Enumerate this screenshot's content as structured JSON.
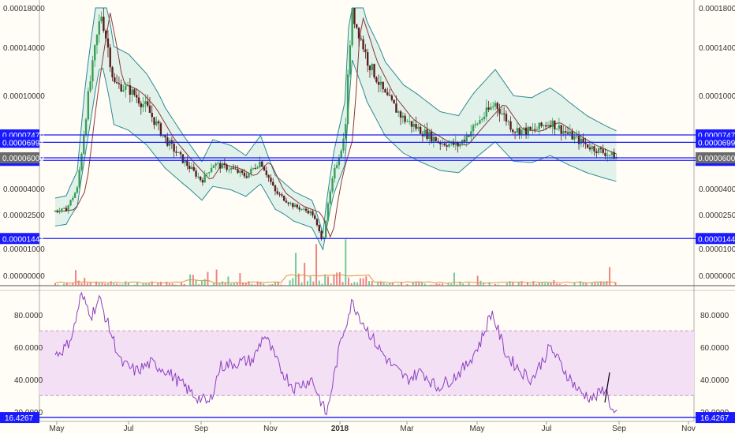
{
  "chart_data": [
    {
      "type": "candlestick",
      "title": "",
      "x_ticks": [
        "May",
        "Jul",
        "Sep",
        "Nov",
        "2018",
        "Mar",
        "May",
        "Jul",
        "Sep",
        "Nov"
      ],
      "y_ticks": [
        "0.00018000",
        "0.00014000",
        "0.00010000",
        "0.00006000",
        "0.00004000",
        "0.00002500",
        "0.00001000",
        "0.00000000"
      ],
      "scale": "log",
      "horizontal_levels": [
        "0.00007470",
        "0.00006994",
        "0.00006000",
        "0.00005834",
        "0.00001444"
      ],
      "current_price": "0.00006000",
      "overlays": [
        "Bollinger Bands",
        "Moving Average",
        "Volume"
      ],
      "price_path": [
        {
          "t": 0.0,
          "v": 2.7e-05
        },
        {
          "t": 0.3,
          "v": 2.8e-05
        },
        {
          "t": 0.6,
          "v": 4e-05
        },
        {
          "t": 1.0,
          "v": 0.00012
        },
        {
          "t": 1.25,
          "v": 0.000175
        },
        {
          "t": 1.6,
          "v": 0.00011
        },
        {
          "t": 2.0,
          "v": 0.000105
        },
        {
          "t": 2.5,
          "v": 9.2e-05
        },
        {
          "t": 3.0,
          "v": 7.2e-05
        },
        {
          "t": 3.5,
          "v": 5.8e-05
        },
        {
          "t": 4.0,
          "v": 4.5e-05
        },
        {
          "t": 4.3,
          "v": 5.6e-05
        },
        {
          "t": 4.8,
          "v": 5.3e-05
        },
        {
          "t": 5.2,
          "v": 4.8e-05
        },
        {
          "t": 5.6,
          "v": 5.8e-05
        },
        {
          "t": 6.0,
          "v": 3.8e-05
        },
        {
          "t": 6.5,
          "v": 3e-05
        },
        {
          "t": 7.0,
          "v": 2.6e-05
        },
        {
          "t": 7.3,
          "v": 1.3e-05
        },
        {
          "t": 7.6,
          "v": 5e-05
        },
        {
          "t": 7.9,
          "v": 7.5e-05
        },
        {
          "t": 8.1,
          "v": 0.000175
        },
        {
          "t": 8.5,
          "v": 0.00013
        },
        {
          "t": 9.0,
          "v": 0.0001
        },
        {
          "t": 9.5,
          "v": 8.5e-05
        },
        {
          "t": 10.0,
          "v": 7.7e-05
        },
        {
          "t": 10.5,
          "v": 7e-05
        },
        {
          "t": 11.0,
          "v": 6.8e-05
        },
        {
          "t": 11.5,
          "v": 8.2e-05
        },
        {
          "t": 12.0,
          "v": 9.5e-05
        },
        {
          "t": 12.5,
          "v": 7.8e-05
        },
        {
          "t": 13.0,
          "v": 7.7e-05
        },
        {
          "t": 13.5,
          "v": 8.3e-05
        },
        {
          "t": 14.0,
          "v": 7.5e-05
        },
        {
          "t": 14.5,
          "v": 6.8e-05
        },
        {
          "t": 15.0,
          "v": 6.3e-05
        },
        {
          "t": 15.35,
          "v": 6e-05
        }
      ]
    },
    {
      "type": "line",
      "title": "",
      "y_ticks": [
        "80.0000",
        "60.0000",
        "40.0000",
        "20.0000"
      ],
      "band": [
        30,
        70
      ],
      "ylim": [
        15,
        95
      ],
      "current_value": "16.4267",
      "rsi_path": [
        {
          "t": 0.0,
          "v": 55
        },
        {
          "t": 0.3,
          "v": 60
        },
        {
          "t": 0.5,
          "v": 70
        },
        {
          "t": 0.7,
          "v": 92
        },
        {
          "t": 1.0,
          "v": 80
        },
        {
          "t": 1.2,
          "v": 90
        },
        {
          "t": 1.5,
          "v": 70
        },
        {
          "t": 1.8,
          "v": 50
        },
        {
          "t": 2.2,
          "v": 45
        },
        {
          "t": 2.6,
          "v": 50
        },
        {
          "t": 3.0,
          "v": 46
        },
        {
          "t": 3.4,
          "v": 38
        },
        {
          "t": 3.8,
          "v": 30
        },
        {
          "t": 4.2,
          "v": 25
        },
        {
          "t": 4.5,
          "v": 48
        },
        {
          "t": 4.9,
          "v": 50
        },
        {
          "t": 5.4,
          "v": 52
        },
        {
          "t": 5.7,
          "v": 68
        },
        {
          "t": 6.1,
          "v": 48
        },
        {
          "t": 6.5,
          "v": 35
        },
        {
          "t": 7.0,
          "v": 40
        },
        {
          "t": 7.4,
          "v": 18
        },
        {
          "t": 7.8,
          "v": 65
        },
        {
          "t": 8.1,
          "v": 88
        },
        {
          "t": 8.4,
          "v": 75
        },
        {
          "t": 8.8,
          "v": 60
        },
        {
          "t": 9.2,
          "v": 48
        },
        {
          "t": 9.6,
          "v": 40
        },
        {
          "t": 10.0,
          "v": 45
        },
        {
          "t": 10.4,
          "v": 35
        },
        {
          "t": 10.8,
          "v": 40
        },
        {
          "t": 11.2,
          "v": 48
        },
        {
          "t": 11.6,
          "v": 63
        },
        {
          "t": 11.9,
          "v": 82
        },
        {
          "t": 12.3,
          "v": 55
        },
        {
          "t": 12.7,
          "v": 45
        },
        {
          "t": 13.0,
          "v": 40
        },
        {
          "t": 13.5,
          "v": 60
        },
        {
          "t": 13.9,
          "v": 45
        },
        {
          "t": 14.3,
          "v": 32
        },
        {
          "t": 14.7,
          "v": 28
        },
        {
          "t": 15.0,
          "v": 35
        },
        {
          "t": 15.2,
          "v": 20
        },
        {
          "t": 15.35,
          "v": 16.4
        }
      ]
    }
  ],
  "colors": {
    "background": "#fffdf5",
    "axis_tag": "#1a1aff",
    "level_line": "#1a1aff",
    "candle_up": "#3a9d56",
    "candle_down": "#5a1f1f",
    "bollinger": "#2a8b93",
    "bollinger_fill": "#dff1ea",
    "ma": "#8b3a3a",
    "rsi": "#8c3fc2",
    "rsi_band": "#f3e0f5",
    "current_price_tag": "#6b6b6b",
    "volume_up": "#5cbf8a",
    "volume_down": "#e87070",
    "volume_ma": "#e0944a"
  },
  "icons": [
    "trend-line-drawing"
  ]
}
